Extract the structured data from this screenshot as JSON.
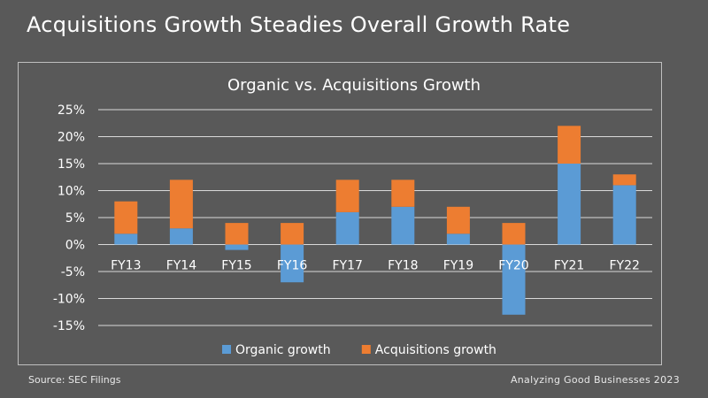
{
  "slide_title": "Acquisitions Growth Steadies Overall Growth Rate",
  "source": "Source: SEC Filings",
  "credit": "Analyzing Good Businesses 2023",
  "colors": {
    "background": "#595959",
    "organic": "#5b9bd5",
    "acquisitions": "#ed7d31",
    "grid": "#d9d9d9",
    "text": "#ffffff"
  },
  "chart_data": {
    "type": "bar",
    "stacked": true,
    "title": "Organic vs. Acquisitions Growth",
    "categories": [
      "FY13",
      "FY14",
      "FY15",
      "FY16",
      "FY17",
      "FY18",
      "FY19",
      "FY20",
      "FY21",
      "FY22"
    ],
    "series": [
      {
        "name": "Organic growth",
        "color": "#5b9bd5",
        "values": [
          2,
          3,
          -1,
          -7,
          6,
          7,
          2,
          -13,
          15,
          11
        ]
      },
      {
        "name": "Acquisitions growth",
        "color": "#ed7d31",
        "values": [
          6,
          9,
          4,
          4,
          6,
          5,
          5,
          4,
          7,
          2
        ]
      }
    ],
    "y_ticks": [
      "25%",
      "20%",
      "15%",
      "10%",
      "5%",
      "0%",
      "-5%",
      "-10%",
      "-15%"
    ],
    "ylim": [
      -15,
      25
    ],
    "grid": true,
    "legend_position": "bottom"
  }
}
